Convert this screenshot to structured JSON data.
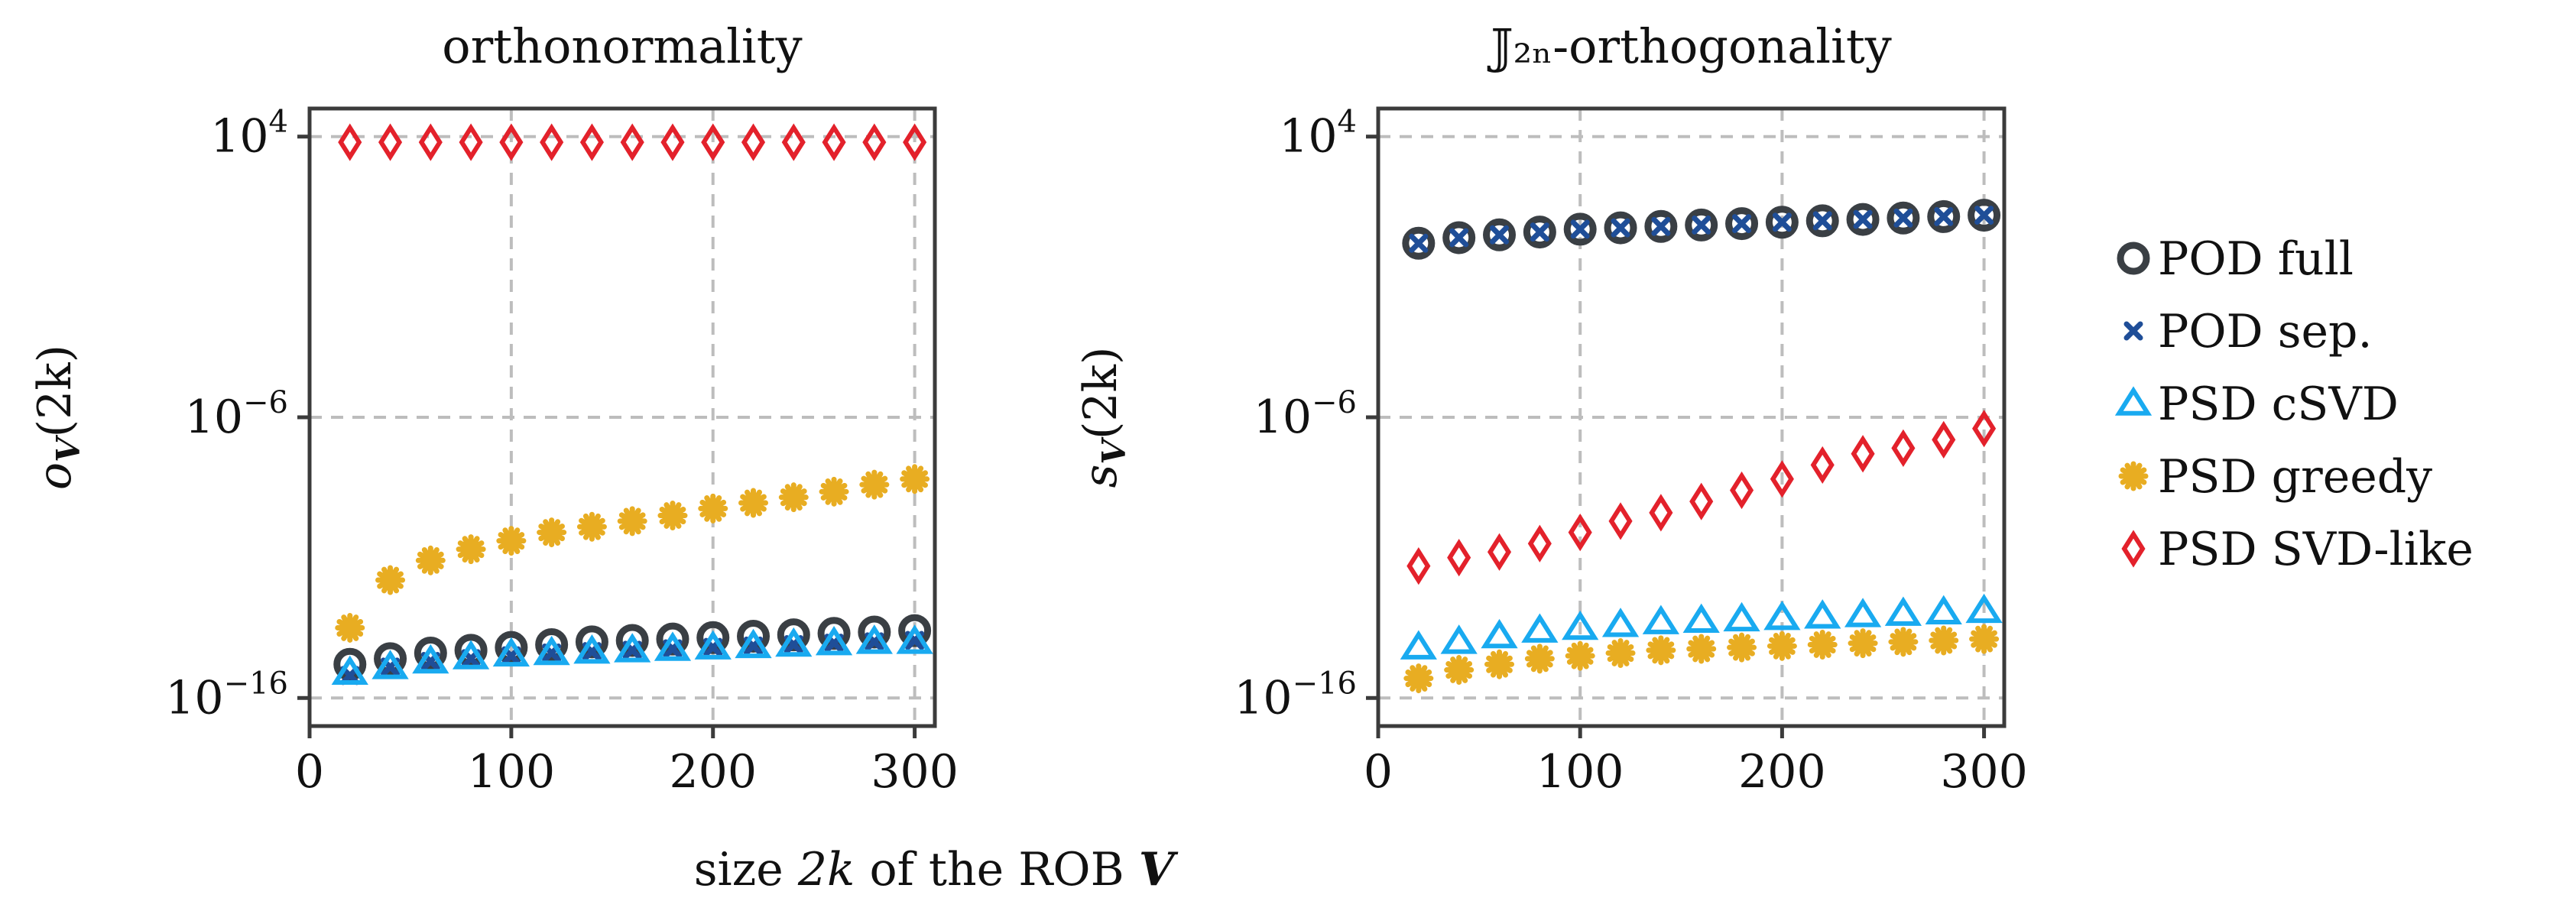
{
  "figure": {
    "xlabel": {
      "prefix": "size ",
      "var": "2k",
      "mid": " of the ROB ",
      "bold": "V"
    }
  },
  "chart_data": [
    {
      "type": "scatter",
      "title": "orthonormality",
      "ylabel": {
        "base": "o",
        "sub": "V",
        "arg": "(2k)"
      },
      "yscale": "log",
      "ylim_exp": [
        -17,
        5
      ],
      "xlim": [
        0,
        310
      ],
      "xticks": [
        "0",
        "100",
        "200",
        "300"
      ],
      "yticks": [
        {
          "base": "10",
          "exp": "4"
        },
        {
          "base": "10",
          "exp": "−6"
        },
        {
          "base": "10",
          "exp": "−16"
        }
      ],
      "grid": true,
      "x": [
        20,
        40,
        60,
        80,
        100,
        120,
        140,
        160,
        180,
        200,
        220,
        240,
        260,
        280,
        300
      ],
      "series": [
        {
          "name": "POD full",
          "log10_values": [
            -14.8,
            -14.6,
            -14.4,
            -14.3,
            -14.2,
            -14.1,
            -14.0,
            -13.95,
            -13.9,
            -13.85,
            -13.8,
            -13.75,
            -13.7,
            -13.65,
            -13.6
          ]
        },
        {
          "name": "POD sep.",
          "log10_values": [
            -15.2,
            -14.9,
            -14.7,
            -14.6,
            -14.5,
            -14.4,
            -14.35,
            -14.3,
            -14.25,
            -14.2,
            -14.15,
            -14.1,
            -14.05,
            -14.0,
            -13.95
          ]
        },
        {
          "name": "PSD cSVD",
          "log10_values": [
            -15.1,
            -14.9,
            -14.7,
            -14.55,
            -14.45,
            -14.4,
            -14.35,
            -14.3,
            -14.25,
            -14.2,
            -14.15,
            -14.1,
            -14.05,
            -14.0,
            -14.0
          ]
        },
        {
          "name": "PSD greedy",
          "log10_values": [
            -13.5,
            -11.8,
            -11.1,
            -10.7,
            -10.4,
            -10.1,
            -9.9,
            -9.7,
            -9.5,
            -9.25,
            -9.05,
            -8.85,
            -8.65,
            -8.4,
            -8.2
          ]
        },
        {
          "name": "PSD SVD-like",
          "log10_values": [
            3.8,
            3.8,
            3.8,
            3.8,
            3.8,
            3.8,
            3.8,
            3.8,
            3.8,
            3.8,
            3.8,
            3.8,
            3.8,
            3.8,
            3.8
          ]
        }
      ]
    },
    {
      "type": "scatter",
      "title": "𝕁₂ₙ-orthogonality",
      "ylabel": {
        "base": "s",
        "sub": "V",
        "arg": "(2k)"
      },
      "yscale": "log",
      "ylim_exp": [
        -17,
        5
      ],
      "xlim": [
        0,
        310
      ],
      "xticks": [
        "0",
        "100",
        "200",
        "300"
      ],
      "yticks": [
        {
          "base": "10",
          "exp": "4"
        },
        {
          "base": "10",
          "exp": "−6"
        },
        {
          "base": "10",
          "exp": "−16"
        }
      ],
      "grid": true,
      "x": [
        20,
        40,
        60,
        80,
        100,
        120,
        140,
        160,
        180,
        200,
        220,
        240,
        260,
        280,
        300
      ],
      "series": [
        {
          "name": "POD full",
          "log10_values": [
            0.2,
            0.4,
            0.5,
            0.6,
            0.7,
            0.75,
            0.8,
            0.85,
            0.9,
            0.95,
            1.0,
            1.05,
            1.1,
            1.15,
            1.2
          ]
        },
        {
          "name": "POD sep.",
          "log10_values": [
            0.2,
            0.4,
            0.5,
            0.6,
            0.7,
            0.75,
            0.8,
            0.85,
            0.9,
            0.95,
            1.0,
            1.05,
            1.1,
            1.15,
            1.2
          ]
        },
        {
          "name": "PSD cSVD",
          "log10_values": [
            -14.2,
            -14.0,
            -13.8,
            -13.6,
            -13.5,
            -13.4,
            -13.3,
            -13.25,
            -13.2,
            -13.15,
            -13.1,
            -13.05,
            -13.0,
            -12.95,
            -12.9
          ]
        },
        {
          "name": "PSD greedy",
          "log10_values": [
            -15.3,
            -15.0,
            -14.8,
            -14.6,
            -14.5,
            -14.4,
            -14.3,
            -14.25,
            -14.2,
            -14.15,
            -14.1,
            -14.05,
            -14.0,
            -13.95,
            -13.9
          ]
        },
        {
          "name": "PSD SVD-like",
          "log10_values": [
            -11.3,
            -11.0,
            -10.8,
            -10.5,
            -10.1,
            -9.7,
            -9.4,
            -9.0,
            -8.6,
            -8.2,
            -7.7,
            -7.3,
            -7.1,
            -6.8,
            -6.4
          ]
        }
      ]
    }
  ],
  "legend": {
    "position": "right",
    "entries": [
      {
        "label": "POD full",
        "marker": "circle",
        "color": "#3a3f44"
      },
      {
        "label": "POD sep.",
        "marker": "x",
        "color": "#1f4e98"
      },
      {
        "label": "PSD cSVD",
        "marker": "triangle",
        "color": "#19aaf0"
      },
      {
        "label": "PSD greedy",
        "marker": "star",
        "color": "#e8ad22"
      },
      {
        "label": "PSD SVD-like",
        "marker": "diamond",
        "color": "#e3212b"
      }
    ]
  }
}
